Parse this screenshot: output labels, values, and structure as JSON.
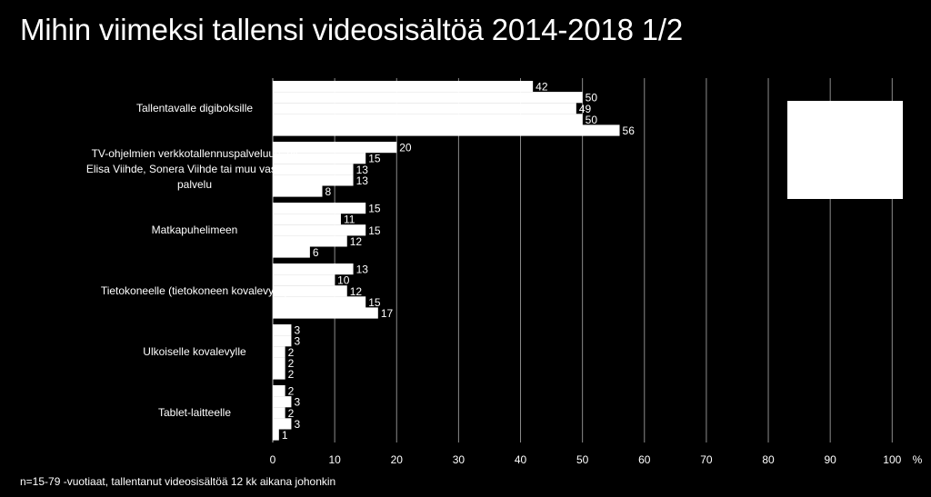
{
  "title": "Mihin viimeksi tallensi videosisältöä 2014-2018  1/2",
  "footnote": "n=15-79 -vuotiaat, tallentanut videosisältöä 12 kk aikana johonkin",
  "chart_data": {
    "type": "bar",
    "orientation": "horizontal",
    "xlim": [
      0,
      100
    ],
    "x_ticks": [
      "0",
      "10",
      "20",
      "30",
      "40",
      "50",
      "60",
      "70",
      "80",
      "90",
      "100"
    ],
    "x_unit": "%",
    "grid": true,
    "categories": [
      [
        "Tallentavalle digiboksille"
      ],
      [
        "TV-ohjelmien verkkotallennuspalveluun, eli",
        "Elisa Viihde, Sonera Viihde tai muu vastaava",
        "palvelu"
      ],
      [
        "Matkapuhelimeen"
      ],
      [
        "Tietokoneelle (tietokoneen kovalevylle)"
      ],
      [
        "Ulkoiselle kovalevylle"
      ],
      [
        "Tablet-laitteelle"
      ]
    ],
    "series_values": [
      [
        42,
        50,
        49,
        50,
        56
      ],
      [
        20,
        15,
        13,
        13,
        8
      ],
      [
        15,
        11,
        15,
        12,
        6
      ],
      [
        13,
        10,
        12,
        15,
        17
      ],
      [
        3,
        3,
        2,
        2,
        2
      ],
      [
        2,
        3,
        2,
        3,
        1
      ]
    ],
    "bar_color": "#ffffff",
    "background": "#000000"
  }
}
